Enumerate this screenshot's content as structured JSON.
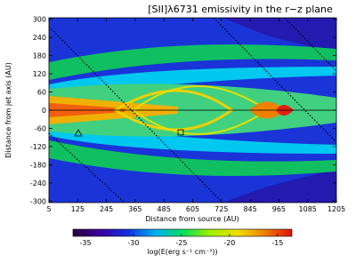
{
  "chart_data": {
    "type": "heatmap",
    "title": "[SII]λ6731 emissivity in the r−z plane",
    "x_label": "Distance from source (AU)",
    "y_label": "Distance from jet axis (AU)",
    "xlim": [
      5,
      1205
    ],
    "xticks": [
      5,
      125,
      245,
      365,
      485,
      605,
      725,
      845,
      965,
      1085,
      1205
    ],
    "ylim": [
      -305,
      305
    ],
    "yticks": [
      300,
      240,
      180,
      120,
      60,
      0,
      -60,
      -120,
      -180,
      -240,
      -300
    ],
    "colorbar": {
      "label": "log(E(erg s⁻¹ cm⁻³))",
      "lim": [
        -36.3,
        -13.5
      ],
      "ticks": [
        -35,
        -30,
        -25,
        -20,
        -15
      ],
      "colors": [
        "#2a0040",
        "#3a00a0",
        "#1030e0",
        "#00b0f0",
        "#00e060",
        "#a0f000",
        "#f0e000",
        "#f08000",
        "#e01010"
      ]
    }
  }
}
